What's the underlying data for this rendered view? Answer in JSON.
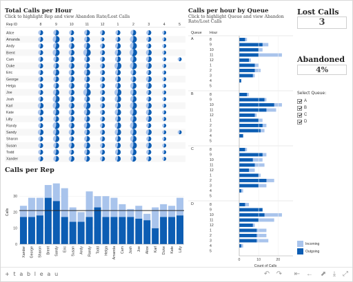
{
  "calls_per_hour": {
    "title": "Total Calls per Hour",
    "subtitle": "Click to highlight Rep and view Abandon Rate/Lost Calls",
    "row_header": "Rep ID",
    "hours": [
      "8",
      "9",
      "10",
      "11",
      "12",
      "1",
      "2",
      "3",
      "4",
      "5"
    ],
    "reps": [
      "Alice",
      "Amanda",
      "Andy",
      "Brent",
      "Cam",
      "Duke",
      "Eric",
      "George",
      "Helga",
      "Joe",
      "Josh",
      "Karl",
      "Kate",
      "Lilly",
      "Randy",
      "Sandy",
      "Sharon",
      "Susan",
      "Todd",
      "Xander"
    ],
    "calls": [
      [
        2,
        3,
        2,
        3,
        2,
        2,
        3,
        2,
        1,
        0
      ],
      [
        2,
        5,
        2,
        3,
        1,
        2,
        5,
        2,
        1,
        0
      ],
      [
        2,
        4,
        3,
        4,
        2,
        3,
        5,
        2,
        1,
        0
      ],
      [
        2,
        5,
        3,
        6,
        2,
        4,
        6,
        3,
        1,
        0
      ],
      [
        2,
        3,
        3,
        3,
        2,
        3,
        4,
        3,
        1,
        1
      ],
      [
        2,
        3,
        3,
        3,
        2,
        5,
        5,
        3,
        1,
        0
      ],
      [
        2,
        4,
        3,
        4,
        2,
        3,
        3,
        2,
        1,
        0
      ],
      [
        2,
        3,
        3,
        3,
        2,
        3,
        3,
        3,
        1,
        0
      ],
      [
        2,
        3,
        3,
        3,
        2,
        3,
        4,
        3,
        1,
        0
      ],
      [
        2,
        4,
        3,
        6,
        2,
        5,
        4,
        2,
        1,
        0
      ],
      [
        2,
        5,
        3,
        3,
        2,
        4,
        4,
        2,
        1,
        0
      ],
      [
        3,
        5,
        3,
        5,
        2,
        3,
        5,
        3,
        1,
        0
      ],
      [
        3,
        4,
        3,
        4,
        2,
        4,
        5,
        3,
        1,
        0
      ],
      [
        2,
        3,
        3,
        3,
        2,
        3,
        4,
        3,
        1,
        0
      ],
      [
        2,
        5,
        3,
        4,
        2,
        4,
        5,
        2,
        1,
        0
      ],
      [
        3,
        4,
        3,
        3,
        2,
        4,
        4,
        3,
        1,
        1
      ],
      [
        2,
        4,
        2,
        3,
        2,
        3,
        4,
        2,
        1,
        0
      ],
      [
        2,
        3,
        3,
        4,
        2,
        3,
        5,
        3,
        1,
        0
      ],
      [
        2,
        3,
        2,
        3,
        2,
        3,
        4,
        2,
        1,
        0
      ],
      [
        2,
        3,
        3,
        3,
        2,
        3,
        3,
        2,
        1,
        0
      ]
    ],
    "outgoing_share": 0.55
  },
  "calls_by_queue": {
    "title": "Calls per hour by Queue",
    "subtitle": "Click to highlight Queue and view Abandon Rate/Lost Calls",
    "col_queue": "Queue",
    "col_hour": "Hour",
    "x_label": "Count of Calls",
    "x_ticks": [
      "0",
      "10",
      "20"
    ],
    "hours": [
      "8",
      "9",
      "10",
      "11",
      "12",
      "1",
      "2",
      "3",
      "4",
      "5"
    ],
    "queues": [
      {
        "name": "A",
        "outgoing": [
          3,
          12,
          10,
          10,
          5,
          8,
          8,
          7,
          1,
          0
        ],
        "total": [
          4,
          15,
          12,
          22,
          6,
          10,
          11,
          8,
          1,
          0
        ]
      },
      {
        "name": "B",
        "outgoing": [
          4,
          13,
          18,
          14,
          8,
          10,
          12,
          11,
          2,
          0
        ],
        "total": [
          5,
          14,
          22,
          19,
          9,
          12,
          14,
          13,
          2,
          0
        ]
      },
      {
        "name": "C",
        "outgoing": [
          3,
          12,
          7,
          8,
          5,
          10,
          14,
          10,
          1,
          0
        ],
        "total": [
          4,
          14,
          12,
          13,
          8,
          11,
          18,
          14,
          2,
          0
        ]
      },
      {
        "name": "D",
        "outgoing": [
          3,
          12,
          13,
          10,
          7,
          9,
          9,
          9,
          1,
          0
        ],
        "total": [
          5,
          12,
          22,
          18,
          8,
          14,
          14,
          15,
          2,
          0
        ]
      }
    ]
  },
  "calls_per_rep": {
    "title": "Calls per Rep",
    "y_label": "Calls",
    "y_ticks": [
      "0",
      "10",
      "20",
      "30"
    ],
    "reps": [
      "Xander",
      "George",
      "Sharon",
      "Brent",
      "Sandy",
      "Eric",
      "Susan",
      "Andy",
      "Randy",
      "Todd",
      "Helga",
      "Amanda",
      "Cam",
      "Josh",
      "Joe",
      "Alice",
      "Karl",
      "Duke",
      "Kate",
      "Lilly"
    ],
    "incoming": [
      7,
      12,
      11,
      8,
      11,
      18,
      9,
      6,
      16,
      7,
      13,
      12,
      8,
      5,
      8,
      4,
      13,
      8,
      7,
      11
    ],
    "outgoing": [
      17,
      17,
      18,
      29,
      27,
      17,
      14,
      14,
      17,
      23,
      17,
      17,
      17,
      17,
      16,
      15,
      10,
      17,
      17,
      18
    ],
    "reference_line": 21
  },
  "kpis": {
    "lost_calls_label": "Lost Calls",
    "lost_calls_value": "3",
    "abandoned_label": "Abandoned",
    "abandoned_value": "4%"
  },
  "filter": {
    "title": "Select Queue:",
    "options": [
      {
        "label": "A",
        "checked": true
      },
      {
        "label": "B",
        "checked": true
      },
      {
        "label": "C",
        "checked": true
      },
      {
        "label": "D",
        "checked": true
      }
    ]
  },
  "legend": {
    "items": [
      {
        "label": "Incoming",
        "color": "#a9c4ec"
      },
      {
        "label": "Outgoing",
        "color": "#0c5db3"
      }
    ]
  },
  "colors": {
    "outgoing": "#0c5db3",
    "incoming": "#a9c4ec",
    "background": "#ffffff"
  },
  "toolbar": {
    "brand": "+ t a b l e a u",
    "icons": [
      "undo-icon",
      "redo-icon",
      "revert-icon",
      "back-icon",
      "share-icon",
      "download-icon",
      "fullscreen-icon"
    ]
  }
}
